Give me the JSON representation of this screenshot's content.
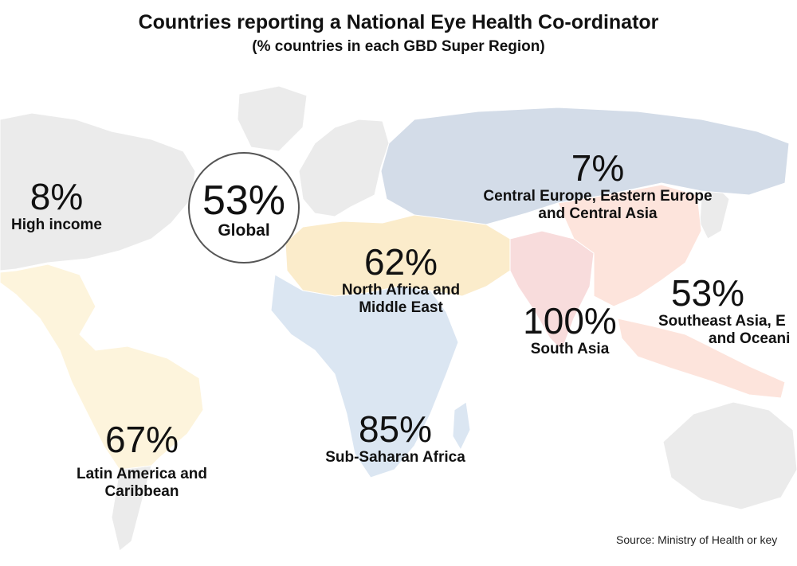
{
  "title": "Countries reporting a National Eye Health Co-ordinator",
  "subtitle": "(% countries in each GBD Super Region)",
  "global": {
    "value": "53%",
    "label": "Global"
  },
  "regions": [
    {
      "id": "high-income",
      "value": "8%",
      "name": "High income",
      "color": "#ebebeb"
    },
    {
      "id": "central-europe",
      "value": "7%",
      "name_line1": "Central Europe, Eastern Europe",
      "name_line2": "and Central Asia",
      "color": "#d3dce8"
    },
    {
      "id": "north-africa",
      "value": "62%",
      "name_line1": "North Africa and",
      "name_line2": "Middle East",
      "color": "#fbeccb"
    },
    {
      "id": "south-asia",
      "value": "100%",
      "name": "South Asia",
      "color": "#f8dcdc"
    },
    {
      "id": "southeast-asia",
      "value": "53%",
      "name_line1": "Southeast Asia, E",
      "name_line2": "and Oceani",
      "color": "#fde4dc"
    },
    {
      "id": "sub-saharan-africa",
      "value": "85%",
      "name": "Sub-Saharan Africa",
      "color": "#dbe6f2"
    },
    {
      "id": "latin-america",
      "value": "67%",
      "name_line1": "Latin America and",
      "name_line2": "Caribbean",
      "color": "#fdf4dc"
    }
  ],
  "source": "Source: Ministry of Health or key"
}
